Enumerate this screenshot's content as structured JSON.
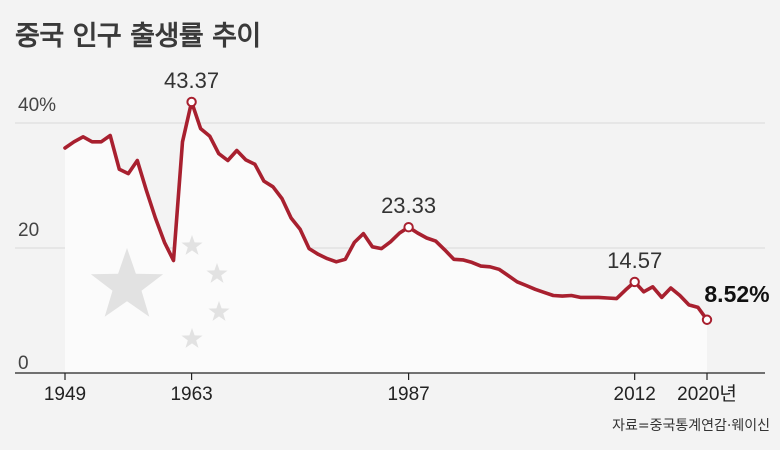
{
  "chart_data": {
    "type": "line",
    "title": "중국 인구 출생률 추이",
    "source": "자료=중국통계연감·웨이신",
    "ylim": [
      0,
      50
    ],
    "yticks": [
      {
        "value": 0,
        "label": "0"
      },
      {
        "value": 20,
        "label": "20"
      },
      {
        "value": 40,
        "label": "40%"
      }
    ],
    "xlim": [
      1949,
      2020
    ],
    "xticks": [
      {
        "value": 1949,
        "label": "1949"
      },
      {
        "value": 1963,
        "label": "1963"
      },
      {
        "value": 1987,
        "label": "1987"
      },
      {
        "value": 2012,
        "label": "2012"
      },
      {
        "value": 2020,
        "label": "2020년"
      }
    ],
    "grid": true,
    "colors": {
      "line": "#a8202f",
      "area": "#fbfbfb",
      "grid": "#d9d9d9",
      "star": "#e2e2e2"
    },
    "series": [
      {
        "x": [
          1949,
          1950,
          1951,
          1952,
          1953,
          1954,
          1955,
          1956,
          1957,
          1958,
          1959,
          1960,
          1961,
          1962,
          1963,
          1964,
          1965,
          1966,
          1967,
          1968,
          1969,
          1970,
          1971,
          1972,
          1973,
          1974,
          1975,
          1976,
          1977,
          1978,
          1979,
          1980,
          1981,
          1982,
          1983,
          1984,
          1985,
          1986,
          1987,
          1988,
          1989,
          1990,
          1991,
          1992,
          1993,
          1994,
          1995,
          1996,
          1997,
          1998,
          1999,
          2000,
          2001,
          2002,
          2003,
          2004,
          2005,
          2006,
          2007,
          2008,
          2009,
          2010,
          2011,
          2012,
          2013,
          2014,
          2015,
          2016,
          2017,
          2018,
          2019,
          2020
        ],
        "values": [
          36.0,
          37.0,
          37.8,
          37.0,
          37.0,
          38.0,
          32.6,
          31.9,
          34.0,
          29.2,
          24.8,
          20.9,
          18.0,
          37.0,
          43.37,
          39.1,
          37.9,
          35.1,
          34.0,
          35.6,
          34.1,
          33.4,
          30.7,
          29.8,
          27.9,
          24.8,
          23.0,
          19.9,
          19.0,
          18.3,
          17.8,
          18.2,
          20.9,
          22.3,
          20.2,
          19.9,
          21.0,
          22.4,
          23.33,
          22.4,
          21.6,
          21.1,
          19.7,
          18.2,
          18.1,
          17.7,
          17.1,
          17.0,
          16.6,
          15.6,
          14.6,
          14.0,
          13.4,
          12.9,
          12.4,
          12.3,
          12.4,
          12.1,
          12.1,
          12.1,
          12.0,
          11.9,
          13.3,
          14.57,
          13.0,
          13.8,
          12.1,
          13.6,
          12.4,
          10.9,
          10.5,
          8.52
        ]
      }
    ],
    "annotations": [
      {
        "x": 1963,
        "y": 43.37,
        "label": "43.37",
        "bold": false
      },
      {
        "x": 1987,
        "y": 23.33,
        "label": "23.33",
        "bold": false
      },
      {
        "x": 2012,
        "y": 14.57,
        "label": "14.57",
        "bold": false
      },
      {
        "x": 2020,
        "y": 8.52,
        "label": "8.52%",
        "bold": true
      }
    ]
  }
}
